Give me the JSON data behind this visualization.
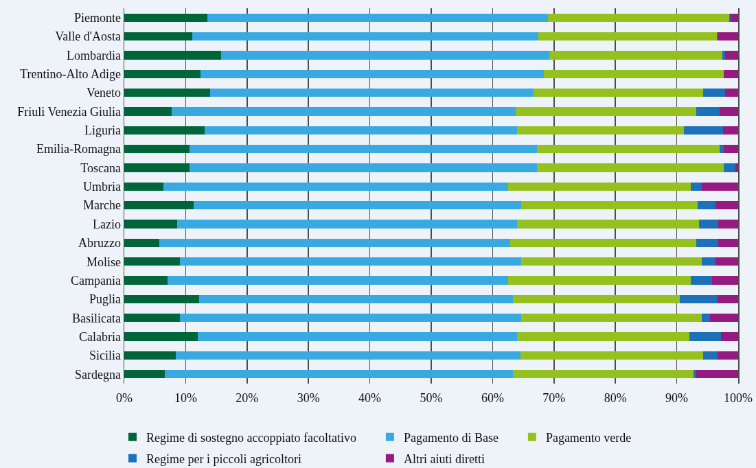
{
  "chart_data": {
    "type": "bar",
    "orientation": "horizontal",
    "stacked": true,
    "categories": [
      "Piemonte",
      "Valle d'Aosta",
      "Lombardia",
      "Trentino-Alto Adige",
      "Veneto",
      "Friuli Venezia Giulia",
      "Liguria",
      "Emilia-Romagna",
      "Toscana",
      "Umbria",
      "Marche",
      "Lazio",
      "Abruzzo",
      "Molise",
      "Campania",
      "Puglia",
      "Basilicata",
      "Calabria",
      "Sicilia",
      "Sardegna"
    ],
    "series": [
      {
        "name": "Regime di sostegno accoppiato facoltativo",
        "color": "#00663a",
        "values": [
          13.5,
          11.1,
          15.8,
          12.4,
          14.0,
          7.7,
          13.1,
          10.6,
          10.6,
          6.4,
          11.3,
          8.6,
          5.7,
          9.1,
          7.0,
          12.2,
          9.1,
          12.0,
          8.4,
          6.6
        ]
      },
      {
        "name": "Pagamento di Base",
        "color": "#39aae1",
        "values": [
          55.5,
          56.3,
          53.4,
          55.9,
          52.7,
          56.1,
          50.9,
          56.6,
          56.6,
          56.1,
          53.4,
          55.4,
          57.2,
          55.6,
          55.5,
          51.1,
          55.6,
          52.0,
          56.1,
          56.7
        ]
      },
      {
        "name": "Pagamento verde",
        "color": "#95c11f",
        "values": [
          29.5,
          29.1,
          28.2,
          29.4,
          27.6,
          29.4,
          27.2,
          29.8,
          30.5,
          29.8,
          28.7,
          29.6,
          30.3,
          29.4,
          29.8,
          27.2,
          29.4,
          28.1,
          29.8,
          29.4
        ]
      },
      {
        "name": "Regime per i piccoli agricoltori",
        "color": "#1d71b8",
        "values": [
          0.3,
          0.3,
          0.5,
          0,
          3.6,
          3.8,
          6.3,
          0.7,
          1.8,
          1.8,
          2.9,
          3.2,
          3.6,
          2.2,
          3.4,
          6.1,
          1.3,
          5.1,
          2.3,
          0.5
        ]
      },
      {
        "name": "Altri aiuti diretti",
        "color": "#951b81",
        "values": [
          1.2,
          3.2,
          2.1,
          2.3,
          2.1,
          3.0,
          2.5,
          2.3,
          0.5,
          5.9,
          3.7,
          3.2,
          3.2,
          3.7,
          4.3,
          3.4,
          4.6,
          2.8,
          3.4,
          6.8
        ]
      }
    ],
    "xlim": [
      0,
      100
    ],
    "xticks": [
      {
        "value": 0,
        "label": "0%"
      },
      {
        "value": 10,
        "label": "10%"
      },
      {
        "value": 20,
        "label": "20%"
      },
      {
        "value": 30,
        "label": "30%"
      },
      {
        "value": 40,
        "label": "40%"
      },
      {
        "value": 50,
        "label": "50%"
      },
      {
        "value": 60,
        "label": "60%"
      },
      {
        "value": 70,
        "label": "70%"
      },
      {
        "value": 80,
        "label": "80%"
      },
      {
        "value": 90,
        "label": "90%"
      },
      {
        "value": 100,
        "label": "100%"
      }
    ],
    "grid": "x",
    "legend": "bottom"
  }
}
